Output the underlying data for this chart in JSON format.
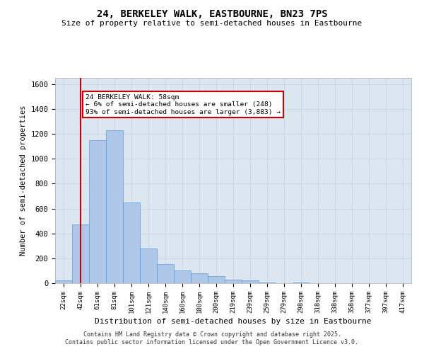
{
  "title": "24, BERKELEY WALK, EASTBOURNE, BN23 7PS",
  "subtitle": "Size of property relative to semi-detached houses in Eastbourne",
  "xlabel": "Distribution of semi-detached houses by size in Eastbourne",
  "ylabel": "Number of semi-detached properties",
  "categories": [
    "22sqm",
    "42sqm",
    "61sqm",
    "81sqm",
    "101sqm",
    "121sqm",
    "140sqm",
    "160sqm",
    "180sqm",
    "200sqm",
    "219sqm",
    "239sqm",
    "259sqm",
    "279sqm",
    "298sqm",
    "318sqm",
    "338sqm",
    "358sqm",
    "377sqm",
    "397sqm",
    "417sqm"
  ],
  "values": [
    20,
    470,
    1150,
    1230,
    650,
    280,
    155,
    105,
    80,
    55,
    30,
    20,
    5,
    0,
    5,
    0,
    0,
    0,
    0,
    0,
    0
  ],
  "bar_color": "#aec6e8",
  "bar_edge_color": "#5b9bd5",
  "vline_x": 1.0,
  "vline_color": "#cc0000",
  "annotation_text": "24 BERKELEY WALK: 58sqm\n← 6% of semi-detached houses are smaller (248)\n93% of semi-detached houses are larger (3,883) →",
  "annotation_box_color": "#ffffff",
  "annotation_box_edge": "#cc0000",
  "ylim": [
    0,
    1650
  ],
  "yticks": [
    0,
    200,
    400,
    600,
    800,
    1000,
    1200,
    1400,
    1600
  ],
  "grid_color": "#c8d4e8",
  "background_color": "#dce6f1",
  "footer_line1": "Contains HM Land Registry data © Crown copyright and database right 2025.",
  "footer_line2": "Contains public sector information licensed under the Open Government Licence v3.0."
}
